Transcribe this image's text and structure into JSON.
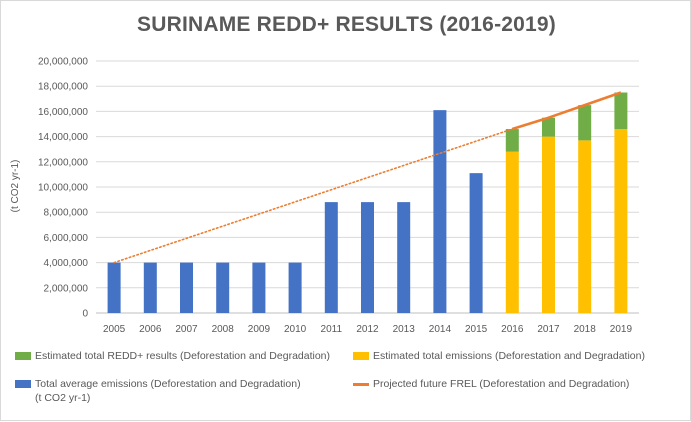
{
  "chart_data": {
    "type": "bar",
    "title": "SURINAME REDD+ RESULTS (2016-2019)",
    "ylabel": "(t CO2 yr-1)",
    "ylim": [
      0,
      20000000
    ],
    "yticks": [
      0,
      2000000,
      4000000,
      6000000,
      8000000,
      10000000,
      12000000,
      14000000,
      16000000,
      18000000,
      20000000
    ],
    "ytick_labels": [
      "0",
      "2,000,000",
      "4,000,000",
      "6,000,000",
      "8,000,000",
      "10,000,000",
      "12,000,000",
      "14,000,000",
      "16,000,000",
      "18,000,000",
      "20,000,000"
    ],
    "categories": [
      "2005",
      "2006",
      "2007",
      "2008",
      "2009",
      "2010",
      "2011",
      "2012",
      "2013",
      "2014",
      "2015",
      "2016",
      "2017",
      "2018",
      "2019"
    ],
    "grid": true,
    "legend_position": "bottom",
    "series": [
      {
        "name": "Total average emissions  (Deforestation and Degradation)",
        "name_line2": "(t CO2 yr-1)",
        "kind": "bar",
        "color": "#4472c4",
        "values": [
          4000000,
          4000000,
          4000000,
          4000000,
          4000000,
          4000000,
          8800000,
          8800000,
          8800000,
          16100000,
          11100000,
          null,
          null,
          null,
          null
        ]
      },
      {
        "name": "Estimated total emissions (Deforestation and Degradation)",
        "kind": "stacked-bar",
        "color": "#ffc000",
        "values": [
          null,
          null,
          null,
          null,
          null,
          null,
          null,
          null,
          null,
          null,
          null,
          12800000,
          14000000,
          13700000,
          14600000
        ]
      },
      {
        "name": "Estimated total REDD+ results (Deforestation and Degradation)",
        "kind": "stacked-bar",
        "color": "#70ad47",
        "values": [
          null,
          null,
          null,
          null,
          null,
          null,
          null,
          null,
          null,
          null,
          null,
          1800000,
          1500000,
          2800000,
          2900000
        ]
      },
      {
        "name": "Projected future FREL (Deforestation and Degradation)",
        "kind": "line",
        "color": "#ed7d31",
        "points": [
          [
            2016,
            14600000
          ],
          [
            2017,
            15500000
          ],
          [
            2018,
            16500000
          ],
          [
            2019,
            17500000
          ]
        ]
      },
      {
        "kind": "trendline",
        "style": "dotted",
        "color": "#ed7d31",
        "points": [
          [
            2005,
            4000000
          ],
          [
            2016,
            14600000
          ]
        ]
      }
    ]
  }
}
